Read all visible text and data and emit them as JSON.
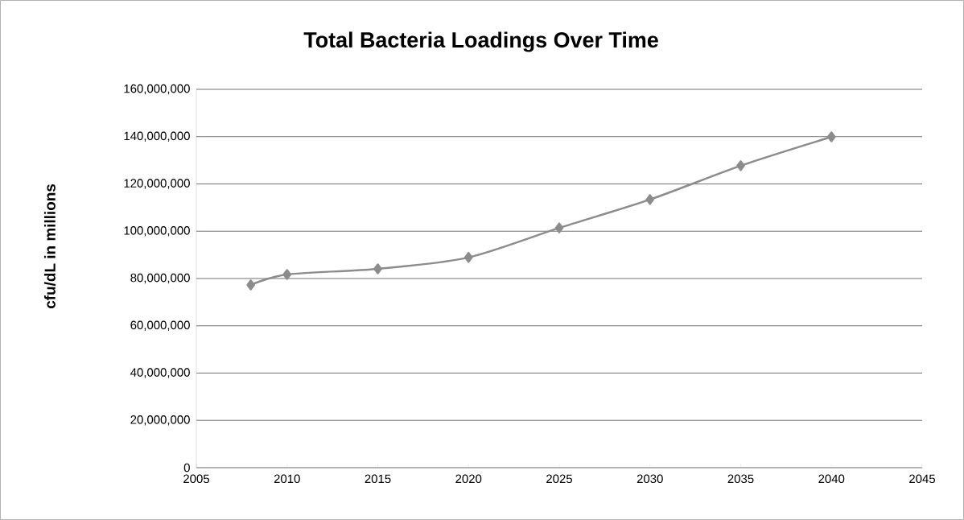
{
  "chart_data": {
    "type": "line",
    "title": "Total Bacteria Loadings Over Time",
    "ylabel": "cfu/dL in millions",
    "x": [
      2008,
      2010,
      2015,
      2020,
      2025,
      2030,
      2035,
      2040
    ],
    "series": [
      {
        "color": "#8c8c8c",
        "values": [
          77300000,
          81700000,
          84100000,
          88900000,
          101400000,
          113400000,
          127700000,
          139900000
        ]
      }
    ],
    "xlim": [
      2005,
      2045
    ],
    "xticks": [
      2005,
      2010,
      2015,
      2020,
      2025,
      2030,
      2035,
      2040,
      2045
    ],
    "ylim": [
      0,
      160000000
    ],
    "yticks": [
      0,
      {
        "value": 20000000,
        "label": "20,000,000"
      },
      {
        "value": 40000000,
        "label": "40,000,000"
      },
      {
        "value": 60000000,
        "label": "60,000,000"
      },
      {
        "value": 80000000,
        "label": "80,000,000"
      },
      {
        "value": 100000000,
        "label": "100,000,000"
      },
      {
        "value": 120000000,
        "label": "120,000,000"
      },
      {
        "value": 140000000,
        "label": "140,000,000"
      },
      {
        "value": 160000000,
        "label": "160,000,000"
      }
    ],
    "grid": "y",
    "marker": "diamond",
    "line_style": "solid"
  }
}
